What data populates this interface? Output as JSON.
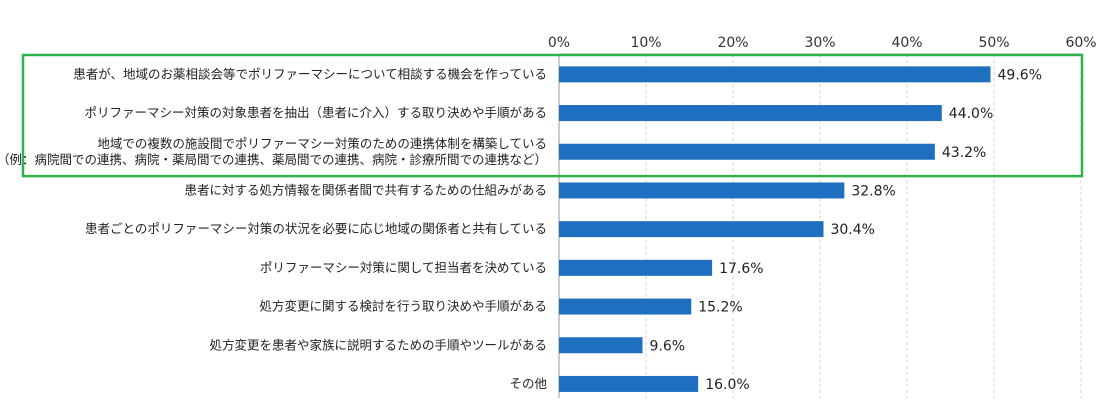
{
  "chart_data": {
    "type": "bar",
    "orientation": "horizontal",
    "xlim": [
      0,
      60
    ],
    "tick_values": [
      0,
      10,
      20,
      30,
      40,
      50,
      60
    ],
    "tick_labels": [
      "0%",
      "10%",
      "20%",
      "30%",
      "40%",
      "50%",
      "60%"
    ],
    "grid": true,
    "bar_color": "#1f6fc0",
    "highlight_color": "#2db34a",
    "highlight_rows": [
      0,
      1,
      2
    ],
    "categories": [
      [
        "患者が、地域のお薬相談会等でポリファーマシーについて相談する機会を作っている"
      ],
      [
        "ポリファーマシー対策の対象患者を抽出（患者に介入）する取り決めや手順がある"
      ],
      [
        "地域での複数の施設間でポリファーマシー対策のための連携体制を構築している",
        "（例：病院間での連携、病院・薬局間での連携、薬局間での連携、病院・診療所間での連携など）"
      ],
      [
        "患者に対する処方情報を関係者間で共有するための仕組みがある"
      ],
      [
        "患者ごとのポリファーマシー対策の状況を必要に応じ地域の関係者と共有している"
      ],
      [
        "ポリファーマシー対策に関して担当者を決めている"
      ],
      [
        "処方変更に関する検討を行う取り決めや手順がある"
      ],
      [
        "処方変更を患者や家族に説明するための手順やツールがある"
      ],
      [
        "その他"
      ]
    ],
    "values": [
      49.6,
      44.0,
      43.2,
      32.8,
      30.4,
      17.6,
      15.2,
      9.6,
      16.0
    ],
    "value_labels": [
      "49.6%",
      "44.0%",
      "43.2%",
      "32.8%",
      "30.4%",
      "17.6%",
      "15.2%",
      "9.6%",
      "16.0%"
    ]
  }
}
